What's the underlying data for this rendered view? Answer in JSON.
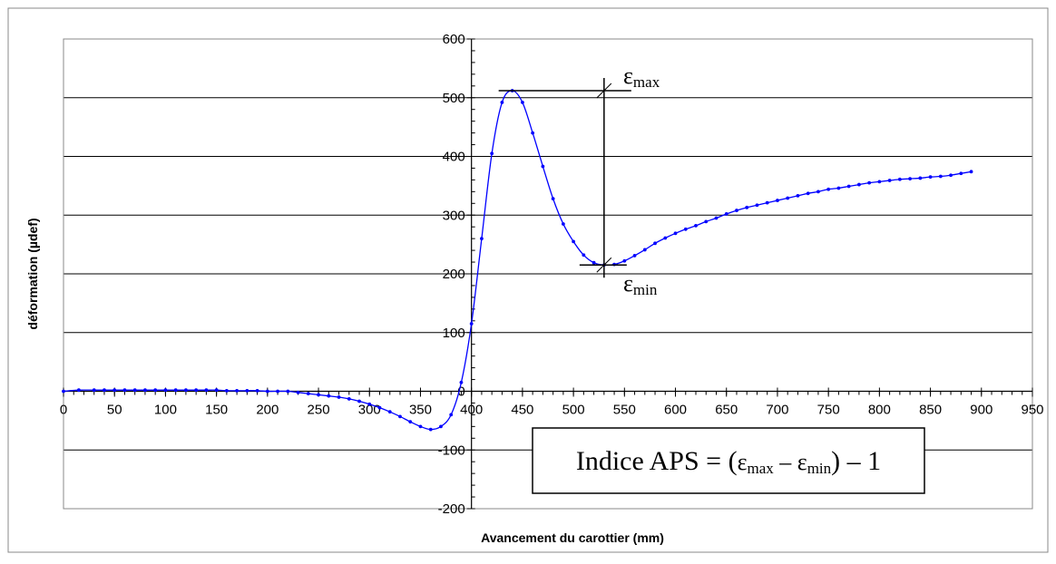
{
  "chart_data": {
    "type": "line",
    "xlabel": "Avancement du carottier (mm)",
    "ylabel": "déformation (µdef)",
    "xlim": [
      0,
      950
    ],
    "ylim": [
      -200,
      600
    ],
    "x_ticks": [
      "0",
      "50",
      "100",
      "150",
      "200",
      "250",
      "300",
      "350",
      "400",
      "450",
      "500",
      "550",
      "600",
      "650",
      "700",
      "750",
      "800",
      "850",
      "900",
      "950"
    ],
    "y_ticks": [
      "-200",
      "-100",
      "0",
      "100",
      "200",
      "300",
      "400",
      "500",
      "600"
    ],
    "grid": "horizontal",
    "legend": "none",
    "line_color": "#0000ff",
    "series": [
      {
        "x": [
          0,
          15,
          30,
          40,
          50,
          60,
          70,
          80,
          90,
          100,
          110,
          120,
          130,
          140,
          150,
          160,
          170,
          180,
          190,
          200,
          210,
          220,
          230,
          240,
          250,
          260,
          270,
          280,
          290,
          300,
          310,
          320,
          330,
          340,
          350,
          360,
          370,
          380,
          390,
          400,
          410,
          420,
          430,
          440,
          450,
          460,
          470,
          480,
          490,
          500,
          510,
          520,
          530,
          540,
          550,
          560,
          570,
          580,
          590,
          600,
          610,
          620,
          630,
          640,
          650,
          660,
          670,
          680,
          690,
          700,
          710,
          720,
          730,
          740,
          750,
          760,
          770,
          780,
          790,
          800,
          810,
          820,
          830,
          840,
          850,
          860,
          870,
          880,
          890
        ],
        "y": [
          0,
          2,
          2,
          2,
          2,
          2,
          2,
          2,
          2,
          2,
          2,
          2,
          2,
          2,
          2,
          1,
          1,
          1,
          1,
          0,
          0,
          0,
          -2,
          -4,
          -6,
          -8,
          -10,
          -13,
          -17,
          -22,
          -28,
          -35,
          -43,
          -52,
          -60,
          -65,
          -60,
          -40,
          15,
          115,
          260,
          405,
          492,
          512,
          492,
          440,
          383,
          328,
          285,
          255,
          232,
          219,
          215,
          216,
          222,
          231,
          241,
          252,
          261,
          269,
          276,
          282,
          289,
          295,
          302,
          308,
          313,
          317,
          321,
          325,
          329,
          333,
          337,
          340,
          344,
          346,
          349,
          352,
          355,
          357,
          359,
          361,
          362,
          363,
          365,
          366,
          368,
          371,
          374
        ]
      }
    ],
    "annotations": {
      "eps_max": {
        "sym": "ε",
        "sub": "max",
        "value": 512
      },
      "eps_min": {
        "sym": "ε",
        "sub": "min",
        "value": 215
      },
      "marker_x": 530,
      "formula": {
        "prefix": "Indice APS = (",
        "sym1": "ε",
        "sub1": "max",
        "minus": " – ",
        "sym2": "ε",
        "sub2": "min",
        "suffix": ") – 1"
      }
    }
  }
}
